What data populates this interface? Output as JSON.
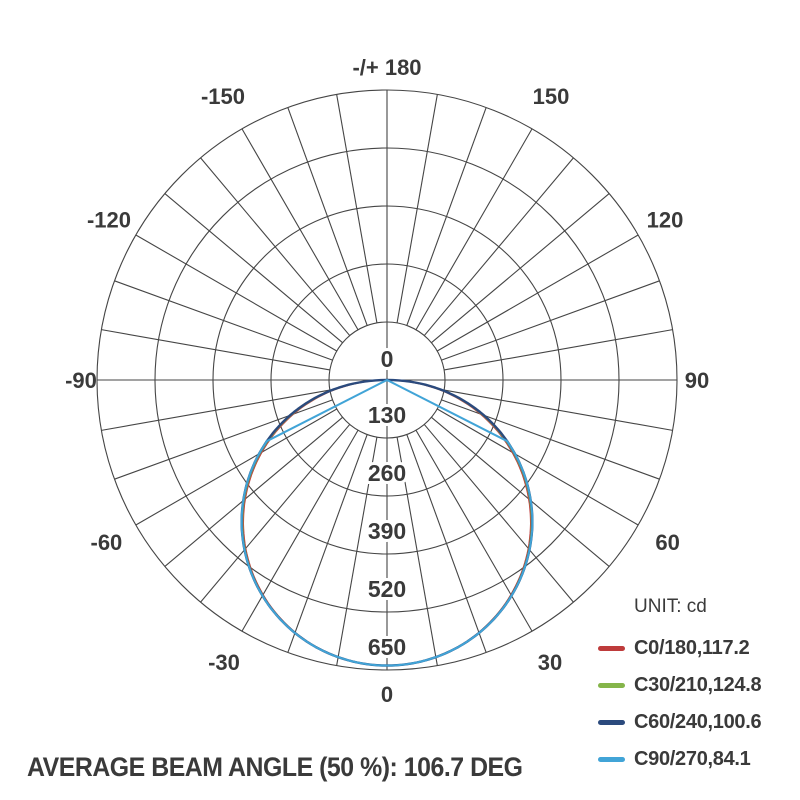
{
  "caption": {
    "text": "AVERAGE BEAM ANGLE (50 %): 106.7 DEG"
  },
  "legend": {
    "unit_label": "UNIT: cd"
  },
  "colors": {
    "text": "#3a3a3a",
    "grid": "#454545",
    "c0_red": "#be3b3b",
    "c30_green": "#85b54a",
    "c60_navy": "#2b4a7d",
    "c90_lightblue": "#41a4d7"
  },
  "chart_data": {
    "type": "line",
    "polar": true,
    "title": "",
    "unit": "cd",
    "angle_axis": {
      "zero_position": "bottom",
      "grid_step_deg": 10,
      "labels": [
        {
          "label": "-/+ 180",
          "angle": 180
        },
        {
          "label": "-150",
          "angle": -150
        },
        {
          "label": "150",
          "angle": 150
        },
        {
          "label": "-120",
          "angle": -120
        },
        {
          "label": "120",
          "angle": 120
        },
        {
          "label": "-90",
          "angle": -90
        },
        {
          "label": "90",
          "angle": 90
        },
        {
          "label": "-60",
          "angle": -60
        },
        {
          "label": "60",
          "angle": 60
        },
        {
          "label": "-30",
          "angle": -30
        },
        {
          "label": "30",
          "angle": 30
        },
        {
          "label": "0",
          "angle": 0
        }
      ]
    },
    "radial_axis": {
      "ticks": [
        0,
        130,
        260,
        390,
        520,
        650
      ],
      "max": 650
    },
    "series": [
      {
        "name": "C0/180,117.2",
        "color": "#be3b3b",
        "beam_angle_deg": 117.2,
        "peak_cd": 640,
        "shape_exp": 0.98,
        "cutoff_deg": 90
      },
      {
        "name": "C30/210,124.8",
        "color": "#85b54a",
        "beam_angle_deg": 124.8,
        "peak_cd": 640,
        "shape_exp": 0.965,
        "cutoff_deg": 90
      },
      {
        "name": "C60/240,100.6",
        "color": "#2b4a7d",
        "beam_angle_deg": 100.6,
        "peak_cd": 640,
        "shape_exp": 0.95,
        "cutoff_deg": 90
      },
      {
        "name": "C90/270,84.1",
        "color": "#41a4d7",
        "beam_angle_deg": 84.1,
        "peak_cd": 640,
        "shape_exp": 0.95,
        "cutoff_deg": 63
      }
    ],
    "legend_position": "bottom-right",
    "caption": "AVERAGE BEAM ANGLE (50 %): 106.7 DEG"
  }
}
